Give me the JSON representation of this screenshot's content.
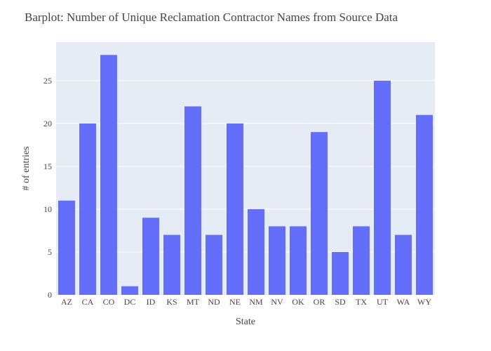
{
  "chart_data": {
    "type": "bar",
    "title": "Barplot: Number of Unique Reclamation Contractor Names from Source Data",
    "xlabel": "State",
    "ylabel": "# of entries",
    "categories": [
      "AZ",
      "CA",
      "CO",
      "DC",
      "ID",
      "KS",
      "MT",
      "ND",
      "NE",
      "NM",
      "NV",
      "OK",
      "OR",
      "SD",
      "TX",
      "UT",
      "WA",
      "WY"
    ],
    "values": [
      11,
      20,
      28,
      1,
      9,
      7,
      22,
      7,
      20,
      10,
      8,
      8,
      19,
      5,
      8,
      25,
      7,
      21
    ],
    "ylim": [
      0,
      29.5
    ],
    "yticks": [
      0,
      5,
      10,
      15,
      20,
      25
    ],
    "grid": true,
    "colors": {
      "bar": "#636efa",
      "plot_background": "#e5ecf6",
      "gridline": "#ffffff",
      "text": "#444444"
    }
  }
}
